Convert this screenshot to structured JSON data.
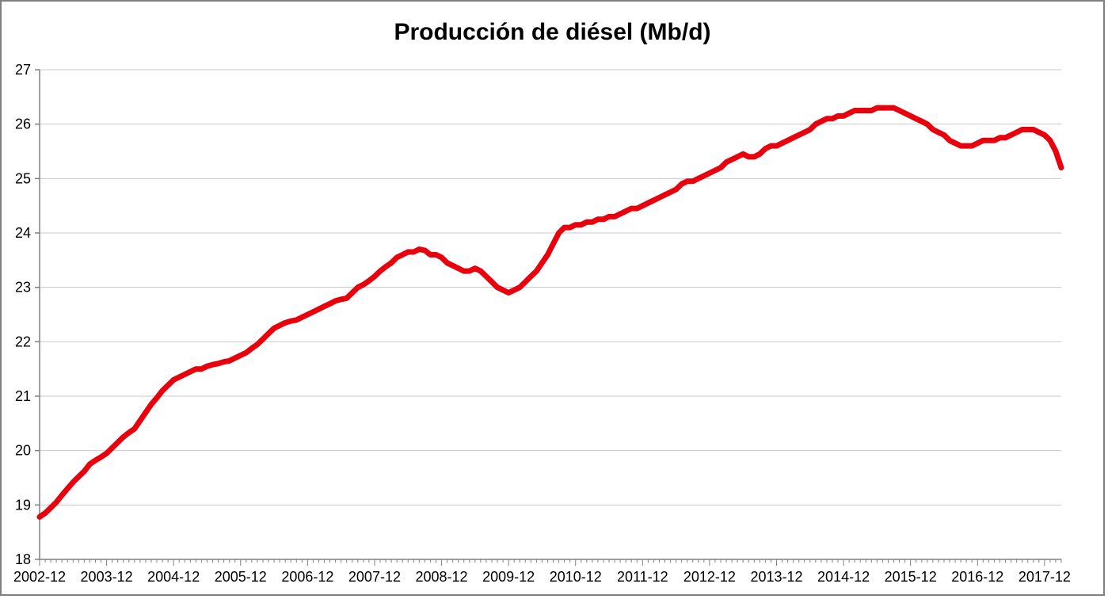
{
  "page": {
    "background": "#ffffff",
    "frame_border_color": "#808080"
  },
  "chart_data": {
    "type": "line",
    "title": "Producción de diésel (Mb/d)",
    "xlabel": "",
    "ylabel": "",
    "grid": true,
    "legend": false,
    "gridline_color": "#c9c9c9",
    "axis_color": "#808080",
    "tick_label_color": "#000000",
    "ylim": [
      18,
      27
    ],
    "y_ticks": [
      18,
      19,
      20,
      21,
      22,
      23,
      24,
      25,
      26,
      27
    ],
    "x_start": "2002-12",
    "x_freq": "monthly",
    "x_tick_interval_months": 12,
    "x_tick_labels": [
      "2002-12",
      "2003-12",
      "2004-12",
      "2005-12",
      "2006-12",
      "2007-12",
      "2008-12",
      "2009-12",
      "2010-12",
      "2011-12",
      "2012-12",
      "2013-12",
      "2014-12",
      "2015-12",
      "2016-12",
      "2017-12"
    ],
    "series": [
      {
        "name": "Producción de diésel (Mb/d)",
        "color": "#e8000d",
        "line_width": 7,
        "values": [
          18.78,
          18.85,
          18.95,
          19.05,
          19.18,
          19.3,
          19.42,
          19.52,
          19.62,
          19.75,
          19.82,
          19.88,
          19.95,
          20.05,
          20.15,
          20.25,
          20.33,
          20.4,
          20.55,
          20.7,
          20.85,
          20.97,
          21.1,
          21.2,
          21.3,
          21.35,
          21.4,
          21.45,
          21.5,
          21.5,
          21.55,
          21.58,
          21.6,
          21.63,
          21.65,
          21.7,
          21.75,
          21.8,
          21.88,
          21.95,
          22.05,
          22.15,
          22.25,
          22.3,
          22.35,
          22.38,
          22.4,
          22.45,
          22.5,
          22.55,
          22.6,
          22.65,
          22.7,
          22.75,
          22.78,
          22.8,
          22.9,
          23.0,
          23.05,
          23.12,
          23.2,
          23.3,
          23.38,
          23.45,
          23.55,
          23.6,
          23.65,
          23.65,
          23.7,
          23.68,
          23.6,
          23.6,
          23.55,
          23.45,
          23.4,
          23.35,
          23.3,
          23.3,
          23.35,
          23.3,
          23.2,
          23.1,
          23.0,
          22.95,
          22.9,
          22.95,
          23.0,
          23.1,
          23.2,
          23.3,
          23.45,
          23.6,
          23.8,
          24.0,
          24.1,
          24.1,
          24.15,
          24.15,
          24.2,
          24.2,
          24.25,
          24.25,
          24.3,
          24.3,
          24.35,
          24.4,
          24.45,
          24.45,
          24.5,
          24.55,
          24.6,
          24.65,
          24.7,
          24.75,
          24.8,
          24.9,
          24.95,
          24.95,
          25.0,
          25.05,
          25.1,
          25.15,
          25.2,
          25.3,
          25.35,
          25.4,
          25.45,
          25.4,
          25.4,
          25.45,
          25.55,
          25.6,
          25.6,
          25.65,
          25.7,
          25.75,
          25.8,
          25.85,
          25.9,
          26.0,
          26.05,
          26.1,
          26.1,
          26.15,
          26.15,
          26.2,
          26.25,
          26.25,
          26.25,
          26.25,
          26.3,
          26.3,
          26.3,
          26.3,
          26.25,
          26.2,
          26.15,
          26.1,
          26.05,
          26.0,
          25.9,
          25.85,
          25.8,
          25.7,
          25.65,
          25.6,
          25.6,
          25.6,
          25.65,
          25.7,
          25.7,
          25.7,
          25.75,
          25.75,
          25.8,
          25.85,
          25.9,
          25.9,
          25.9,
          25.85,
          25.8,
          25.7,
          25.5,
          25.2
        ]
      }
    ]
  }
}
